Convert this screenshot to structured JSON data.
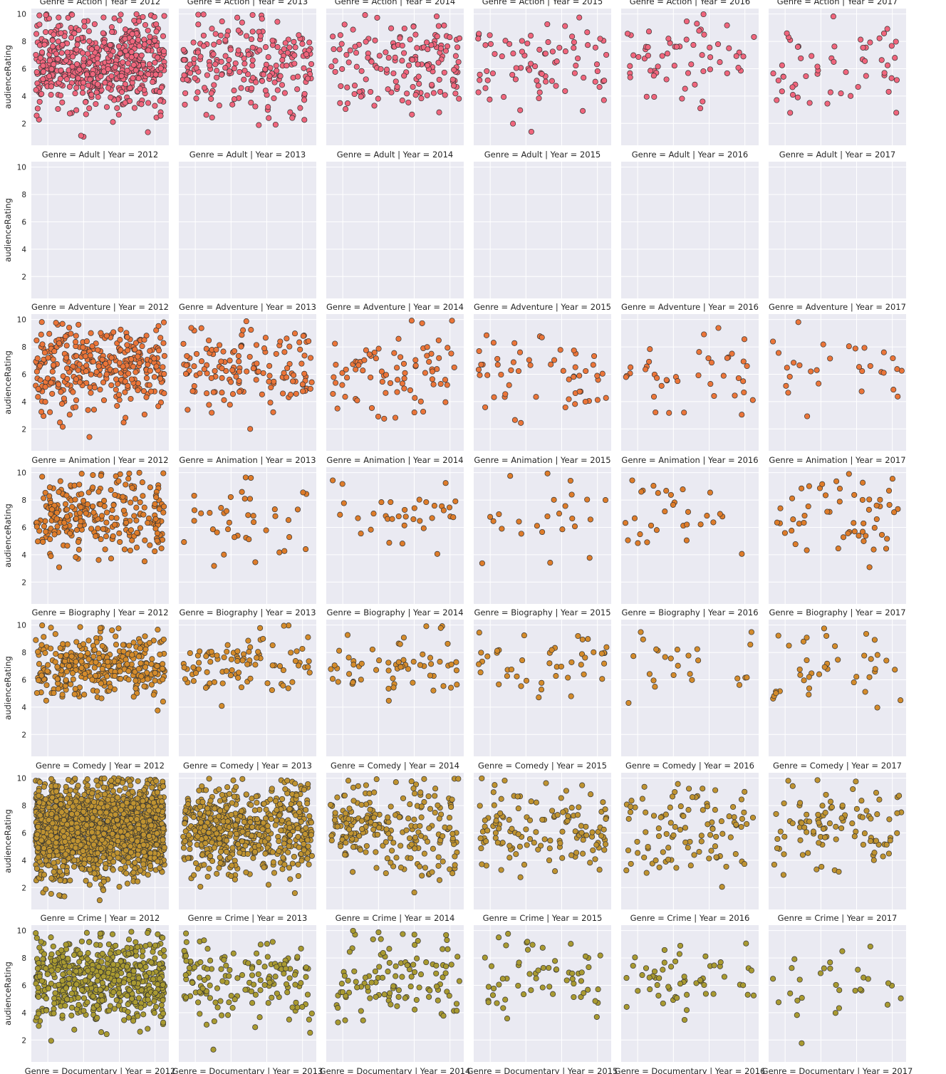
{
  "chart_data": {
    "type": "scatter",
    "description": "Facet grid of scatter plots: audienceRating by genre (rows) and year (columns)",
    "row_variable": "Genre",
    "col_variable": "Year",
    "ylabel": "audienceRating",
    "ylim": [
      0.4,
      10.4
    ],
    "yticks": [
      2,
      4,
      6,
      8,
      10
    ],
    "grid": true,
    "columns": [
      "2012",
      "2013",
      "2014",
      "2015",
      "2016",
      "2017"
    ],
    "rows": [
      {
        "genre": "Action",
        "color": "#f0657c",
        "counts": [
          560,
          220,
          150,
          80,
          60,
          55
        ],
        "mean": 6.2,
        "sd": 1.7
      },
      {
        "genre": "Adult",
        "color": "#f0657c",
        "counts": [
          0,
          0,
          0,
          0,
          0,
          0
        ],
        "mean": 6.0,
        "sd": 1.5
      },
      {
        "genre": "Adventure",
        "color": "#eb7539",
        "counts": [
          330,
          140,
          80,
          55,
          40,
          30
        ],
        "mean": 6.4,
        "sd": 1.5
      },
      {
        "genre": "Animation",
        "color": "#de7c2a",
        "counts": [
          260,
          40,
          35,
          25,
          30,
          55
        ],
        "mean": 6.8,
        "sd": 1.4
      },
      {
        "genre": "Biography",
        "color": "#d48b2b",
        "counts": [
          330,
          90,
          60,
          45,
          25,
          40
        ],
        "mean": 7.0,
        "sd": 1.2
      },
      {
        "genre": "Comedy",
        "color": "#bf9331",
        "counts": [
          1900,
          550,
          220,
          130,
          100,
          100
        ],
        "mean": 6.3,
        "sd": 1.6
      },
      {
        "genre": "Crime",
        "color": "#a99a31",
        "counts": [
          560,
          150,
          110,
          60,
          55,
          30
        ],
        "mean": 6.4,
        "sd": 1.5
      },
      {
        "genre": "Documentary",
        "color": "#9aa030",
        "counts": [
          0,
          0,
          0,
          0,
          0,
          0
        ],
        "mean": 7.0,
        "sd": 1.2
      }
    ],
    "panel_titles": [
      [
        "Genre = Action | Year = 2012",
        "Genre = Action | Year = 2013",
        "Genre = Action | Year = 2014",
        "Genre = Action | Year = 2015",
        "Genre = Action | Year = 2016",
        "Genre = Action | Year = 2017"
      ],
      [
        "Genre = Adult | Year = 2012",
        "Genre = Adult | Year = 2013",
        "Genre = Adult | Year = 2014",
        "Genre = Adult | Year = 2015",
        "Genre = Adult | Year = 2016",
        "Genre = Adult | Year = 2017"
      ],
      [
        "Genre = Adventure | Year = 2012",
        "Genre = Adventure | Year = 2013",
        "Genre = Adventure | Year = 2014",
        "Genre = Adventure | Year = 2015",
        "Genre = Adventure | Year = 2016",
        "Genre = Adventure | Year = 2017"
      ],
      [
        "Genre = Animation | Year = 2012",
        "Genre = Animation | Year = 2013",
        "Genre = Animation | Year = 2014",
        "Genre = Animation | Year = 2015",
        "Genre = Animation | Year = 2016",
        "Genre = Animation | Year = 2017"
      ],
      [
        "Genre = Biography | Year = 2012",
        "Genre = Biography | Year = 2013",
        "Genre = Biography | Year = 2014",
        "Genre = Biography | Year = 2015",
        "Genre = Biography | Year = 2016",
        "Genre = Biography | Year = 2017"
      ],
      [
        "Genre = Comedy | Year = 2012",
        "Genre = Comedy | Year = 2013",
        "Genre = Comedy | Year = 2014",
        "Genre = Comedy | Year = 2015",
        "Genre = Comedy | Year = 2016",
        "Genre = Comedy | Year = 2017"
      ],
      [
        "Genre = Crime | Year = 2012",
        "Genre = Crime | Year = 2013",
        "Genre = Crime | Year = 2014",
        "Genre = Crime | Year = 2015",
        "Genre = Crime | Year = 2016",
        "Genre = Crime | Year = 2017"
      ],
      [
        "Genre = Documentary | Year = 2012",
        "Genre = Documentary | Year = 2013",
        "Genre = Documentary | Year = 2014",
        "Genre = Documentary | Year = 2015",
        "Genre = Documentary | Year = 2016",
        "Genre = Documentary | Year = 2017"
      ]
    ]
  }
}
